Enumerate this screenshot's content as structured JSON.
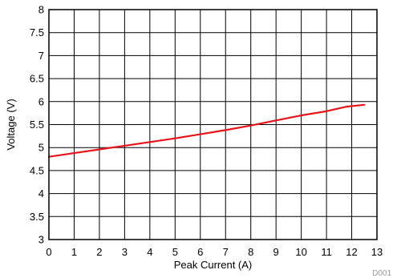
{
  "chart_data": {
    "type": "line",
    "title": "",
    "xlabel": "Peak Current (A)",
    "ylabel": "Voltage (V)",
    "xlim": [
      0,
      13
    ],
    "ylim": [
      3,
      8
    ],
    "x_ticks": [
      "0",
      "1",
      "2",
      "3",
      "4",
      "5",
      "6",
      "7",
      "8",
      "9",
      "10",
      "11",
      "12",
      "13"
    ],
    "y_ticks": [
      "3",
      "3.5",
      "4",
      "4.5",
      "5",
      "5.5",
      "6",
      "6.5",
      "7",
      "7.5",
      "8"
    ],
    "grid": true,
    "legend": "none",
    "series": [
      {
        "color": "#e8141b",
        "x": [
          0,
          1,
          2,
          3,
          4,
          5,
          6,
          7,
          8,
          9,
          10,
          11,
          11.8,
          12.5
        ],
        "y": [
          4.8,
          4.88,
          4.96,
          5.04,
          5.12,
          5.2,
          5.29,
          5.38,
          5.48,
          5.59,
          5.7,
          5.79,
          5.89,
          5.93
        ]
      }
    ],
    "figure_tag": "D001"
  }
}
